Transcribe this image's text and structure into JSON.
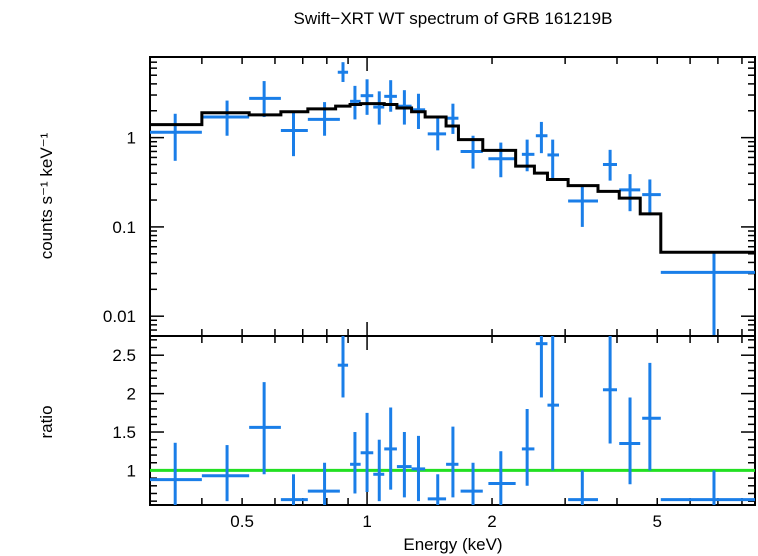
{
  "colors": {
    "data": "#1a7ee8",
    "model": "#000000",
    "unity": "#22e022",
    "axis": "#000000"
  },
  "chart_data": [
    {
      "type": "scatter",
      "title": "Swift−XRT WT spectrum of GRB 161219B",
      "xlabel": "",
      "ylabel": "counts s⁻¹ keV⁻¹",
      "x_scale": "log",
      "y_scale": "log",
      "xlim": [
        0.3,
        8.6
      ],
      "ylim": [
        0.006,
        8.0
      ],
      "yticks": [
        {
          "v": 0.01,
          "label": "0.01"
        },
        {
          "v": 0.1,
          "label": "0.1"
        },
        {
          "v": 1,
          "label": "1"
        }
      ],
      "series": [
        {
          "kind": "points",
          "points": [
            {
              "x": 0.345,
              "xlo": 0.3,
              "xhi": 0.4,
              "y": 1.15,
              "ylo": 0.55,
              "yhi": 1.85
            },
            {
              "x": 0.46,
              "xlo": 0.4,
              "xhi": 0.52,
              "y": 1.7,
              "ylo": 1.05,
              "yhi": 2.6
            },
            {
              "x": 0.565,
              "xlo": 0.52,
              "xhi": 0.62,
              "y": 2.75,
              "ylo": 1.7,
              "yhi": 4.3
            },
            {
              "x": 0.665,
              "xlo": 0.62,
              "xhi": 0.72,
              "y": 1.2,
              "ylo": 0.62,
              "yhi": 1.9
            },
            {
              "x": 0.79,
              "xlo": 0.72,
              "xhi": 0.86,
              "y": 1.6,
              "ylo": 1.05,
              "yhi": 2.5
            },
            {
              "x": 0.875,
              "xlo": 0.85,
              "xhi": 0.9,
              "y": 5.4,
              "ylo": 4.2,
              "yhi": 7.0
            },
            {
              "x": 0.935,
              "xlo": 0.91,
              "xhi": 0.965,
              "y": 2.55,
              "ylo": 1.6,
              "yhi": 3.8
            },
            {
              "x": 1.0,
              "xlo": 0.965,
              "xhi": 1.035,
              "y": 2.95,
              "ylo": 1.8,
              "yhi": 4.5
            },
            {
              "x": 1.07,
              "xlo": 1.035,
              "xhi": 1.1,
              "y": 2.2,
              "ylo": 1.4,
              "yhi": 3.3
            },
            {
              "x": 1.14,
              "xlo": 1.1,
              "xhi": 1.18,
              "y": 2.9,
              "ylo": 1.95,
              "yhi": 4.4
            },
            {
              "x": 1.23,
              "xlo": 1.18,
              "xhi": 1.28,
              "y": 2.25,
              "ylo": 1.4,
              "yhi": 3.4
            },
            {
              "x": 1.33,
              "xlo": 1.28,
              "xhi": 1.38,
              "y": 2.05,
              "ylo": 1.25,
              "yhi": 3.1
            },
            {
              "x": 1.48,
              "xlo": 1.4,
              "xhi": 1.55,
              "y": 1.1,
              "ylo": 0.72,
              "yhi": 1.65
            },
            {
              "x": 1.61,
              "xlo": 1.55,
              "xhi": 1.66,
              "y": 1.65,
              "ylo": 1.1,
              "yhi": 2.4
            },
            {
              "x": 1.8,
              "xlo": 1.68,
              "xhi": 1.9,
              "y": 0.7,
              "ylo": 0.45,
              "yhi": 1.05
            },
            {
              "x": 2.1,
              "xlo": 1.96,
              "xhi": 2.28,
              "y": 0.58,
              "ylo": 0.36,
              "yhi": 0.88
            },
            {
              "x": 2.43,
              "xlo": 2.36,
              "xhi": 2.53,
              "y": 0.65,
              "ylo": 0.42,
              "yhi": 0.95
            },
            {
              "x": 2.63,
              "xlo": 2.55,
              "xhi": 2.72,
              "y": 1.05,
              "ylo": 0.67,
              "yhi": 1.5
            },
            {
              "x": 2.8,
              "xlo": 2.72,
              "xhi": 2.9,
              "y": 0.64,
              "ylo": 0.33,
              "yhi": 0.95
            },
            {
              "x": 3.3,
              "xlo": 3.05,
              "xhi": 3.6,
              "y": 0.195,
              "ylo": 0.1,
              "yhi": 0.29
            },
            {
              "x": 3.85,
              "xlo": 3.7,
              "xhi": 4.0,
              "y": 0.5,
              "ylo": 0.33,
              "yhi": 0.73
            },
            {
              "x": 4.3,
              "xlo": 4.05,
              "xhi": 4.55,
              "y": 0.26,
              "ylo": 0.15,
              "yhi": 0.39
            },
            {
              "x": 4.8,
              "xlo": 4.6,
              "xhi": 5.1,
              "y": 0.23,
              "ylo": 0.135,
              "yhi": 0.34
            },
            {
              "x": 6.85,
              "xlo": 5.1,
              "xhi": 8.6,
              "y": 0.031,
              "ylo": 0.005,
              "yhi": 0.052
            }
          ]
        },
        {
          "kind": "step",
          "bins": [
            {
              "x0": 0.3,
              "x1": 0.4,
              "y": 1.4
            },
            {
              "x0": 0.4,
              "x1": 0.52,
              "y": 1.9
            },
            {
              "x0": 0.52,
              "x1": 0.62,
              "y": 1.8
            },
            {
              "x0": 0.62,
              "x1": 0.72,
              "y": 1.95
            },
            {
              "x0": 0.72,
              "x1": 0.84,
              "y": 2.1
            },
            {
              "x0": 0.84,
              "x1": 0.91,
              "y": 2.25
            },
            {
              "x0": 0.91,
              "x1": 0.965,
              "y": 2.35
            },
            {
              "x0": 0.965,
              "x1": 1.1,
              "y": 2.4
            },
            {
              "x0": 1.1,
              "x1": 1.18,
              "y": 2.35
            },
            {
              "x0": 1.18,
              "x1": 1.28,
              "y": 2.15
            },
            {
              "x0": 1.28,
              "x1": 1.38,
              "y": 1.95
            },
            {
              "x0": 1.38,
              "x1": 1.55,
              "y": 1.7
            },
            {
              "x0": 1.55,
              "x1": 1.66,
              "y": 1.35
            },
            {
              "x0": 1.66,
              "x1": 1.9,
              "y": 0.95
            },
            {
              "x0": 1.9,
              "x1": 2.28,
              "y": 0.72
            },
            {
              "x0": 2.28,
              "x1": 2.53,
              "y": 0.48
            },
            {
              "x0": 2.53,
              "x1": 2.72,
              "y": 0.4
            },
            {
              "x0": 2.72,
              "x1": 3.05,
              "y": 0.34
            },
            {
              "x0": 3.05,
              "x1": 3.6,
              "y": 0.29
            },
            {
              "x0": 3.6,
              "x1": 4.05,
              "y": 0.25
            },
            {
              "x0": 4.05,
              "x1": 4.55,
              "y": 0.21
            },
            {
              "x0": 4.55,
              "x1": 5.1,
              "y": 0.14
            },
            {
              "x0": 5.1,
              "x1": 8.6,
              "y": 0.052
            }
          ]
        }
      ]
    },
    {
      "type": "scatter",
      "title": "",
      "xlabel": "Energy (keV)",
      "ylabel": "ratio",
      "x_scale": "log",
      "y_scale": "linear",
      "xlim": [
        0.3,
        8.6
      ],
      "ylim": [
        0.55,
        2.75
      ],
      "xticks": [
        {
          "v": 0.5,
          "label": "0.5"
        },
        {
          "v": 1,
          "label": "1"
        },
        {
          "v": 2,
          "label": "2"
        },
        {
          "v": 5,
          "label": "5"
        }
      ],
      "yticks": [
        {
          "v": 1,
          "label": "1"
        },
        {
          "v": 1.5,
          "label": "1.5"
        },
        {
          "v": 2,
          "label": "2"
        },
        {
          "v": 2.5,
          "label": "2.5"
        }
      ],
      "unity": 1.0,
      "series": [
        {
          "kind": "points",
          "points": [
            {
              "x": 0.345,
              "xlo": 0.3,
              "xhi": 0.4,
              "y": 0.88,
              "ylo": 0.55,
              "yhi": 1.36
            },
            {
              "x": 0.46,
              "xlo": 0.4,
              "xhi": 0.52,
              "y": 0.93,
              "ylo": 0.6,
              "yhi": 1.33
            },
            {
              "x": 0.565,
              "xlo": 0.52,
              "xhi": 0.62,
              "y": 1.56,
              "ylo": 0.95,
              "yhi": 2.15
            },
            {
              "x": 0.665,
              "xlo": 0.62,
              "xhi": 0.72,
              "y": 0.62,
              "ylo": 0.55,
              "yhi": 0.95
            },
            {
              "x": 0.79,
              "xlo": 0.72,
              "xhi": 0.86,
              "y": 0.73,
              "ylo": 0.55,
              "yhi": 1.1
            },
            {
              "x": 0.875,
              "xlo": 0.85,
              "xhi": 0.9,
              "y": 2.37,
              "ylo": 1.95,
              "yhi": 2.75
            },
            {
              "x": 0.935,
              "xlo": 0.91,
              "xhi": 0.965,
              "y": 1.08,
              "ylo": 0.7,
              "yhi": 1.5
            },
            {
              "x": 1.0,
              "xlo": 0.965,
              "xhi": 1.035,
              "y": 1.23,
              "ylo": 0.72,
              "yhi": 1.75
            },
            {
              "x": 1.07,
              "xlo": 1.035,
              "xhi": 1.1,
              "y": 0.95,
              "ylo": 0.6,
              "yhi": 1.4
            },
            {
              "x": 1.14,
              "xlo": 1.1,
              "xhi": 1.18,
              "y": 1.28,
              "ylo": 0.75,
              "yhi": 1.82
            },
            {
              "x": 1.23,
              "xlo": 1.18,
              "xhi": 1.28,
              "y": 1.05,
              "ylo": 0.65,
              "yhi": 1.5
            },
            {
              "x": 1.33,
              "xlo": 1.28,
              "xhi": 1.38,
              "y": 1.02,
              "ylo": 0.6,
              "yhi": 1.45
            },
            {
              "x": 1.48,
              "xlo": 1.4,
              "xhi": 1.55,
              "y": 0.63,
              "ylo": 0.55,
              "yhi": 0.95
            },
            {
              "x": 1.61,
              "xlo": 1.55,
              "xhi": 1.66,
              "y": 1.08,
              "ylo": 0.65,
              "yhi": 1.57
            },
            {
              "x": 1.8,
              "xlo": 1.68,
              "xhi": 1.9,
              "y": 0.73,
              "ylo": 0.55,
              "yhi": 1.1
            },
            {
              "x": 2.1,
              "xlo": 1.96,
              "xhi": 2.28,
              "y": 0.83,
              "ylo": 0.55,
              "yhi": 1.25
            },
            {
              "x": 2.43,
              "xlo": 2.36,
              "xhi": 2.53,
              "y": 1.28,
              "ylo": 0.8,
              "yhi": 1.8
            },
            {
              "x": 2.63,
              "xlo": 2.55,
              "xhi": 2.72,
              "y": 2.65,
              "ylo": 1.95,
              "yhi": 2.75
            },
            {
              "x": 2.8,
              "xlo": 2.72,
              "xhi": 2.9,
              "y": 1.85,
              "ylo": 1.0,
              "yhi": 2.75
            },
            {
              "x": 3.3,
              "xlo": 3.05,
              "xhi": 3.6,
              "y": 0.62,
              "ylo": 0.55,
              "yhi": 1.0
            },
            {
              "x": 3.85,
              "xlo": 3.7,
              "xhi": 4.0,
              "y": 2.05,
              "ylo": 1.35,
              "yhi": 2.75
            },
            {
              "x": 4.3,
              "xlo": 4.05,
              "xhi": 4.55,
              "y": 1.35,
              "ylo": 0.82,
              "yhi": 1.95
            },
            {
              "x": 4.8,
              "xlo": 4.6,
              "xhi": 5.1,
              "y": 1.68,
              "ylo": 1.0,
              "yhi": 2.4
            },
            {
              "x": 6.85,
              "xlo": 5.1,
              "xhi": 8.6,
              "y": 0.62,
              "ylo": 0.55,
              "yhi": 1.0
            }
          ]
        }
      ]
    }
  ]
}
